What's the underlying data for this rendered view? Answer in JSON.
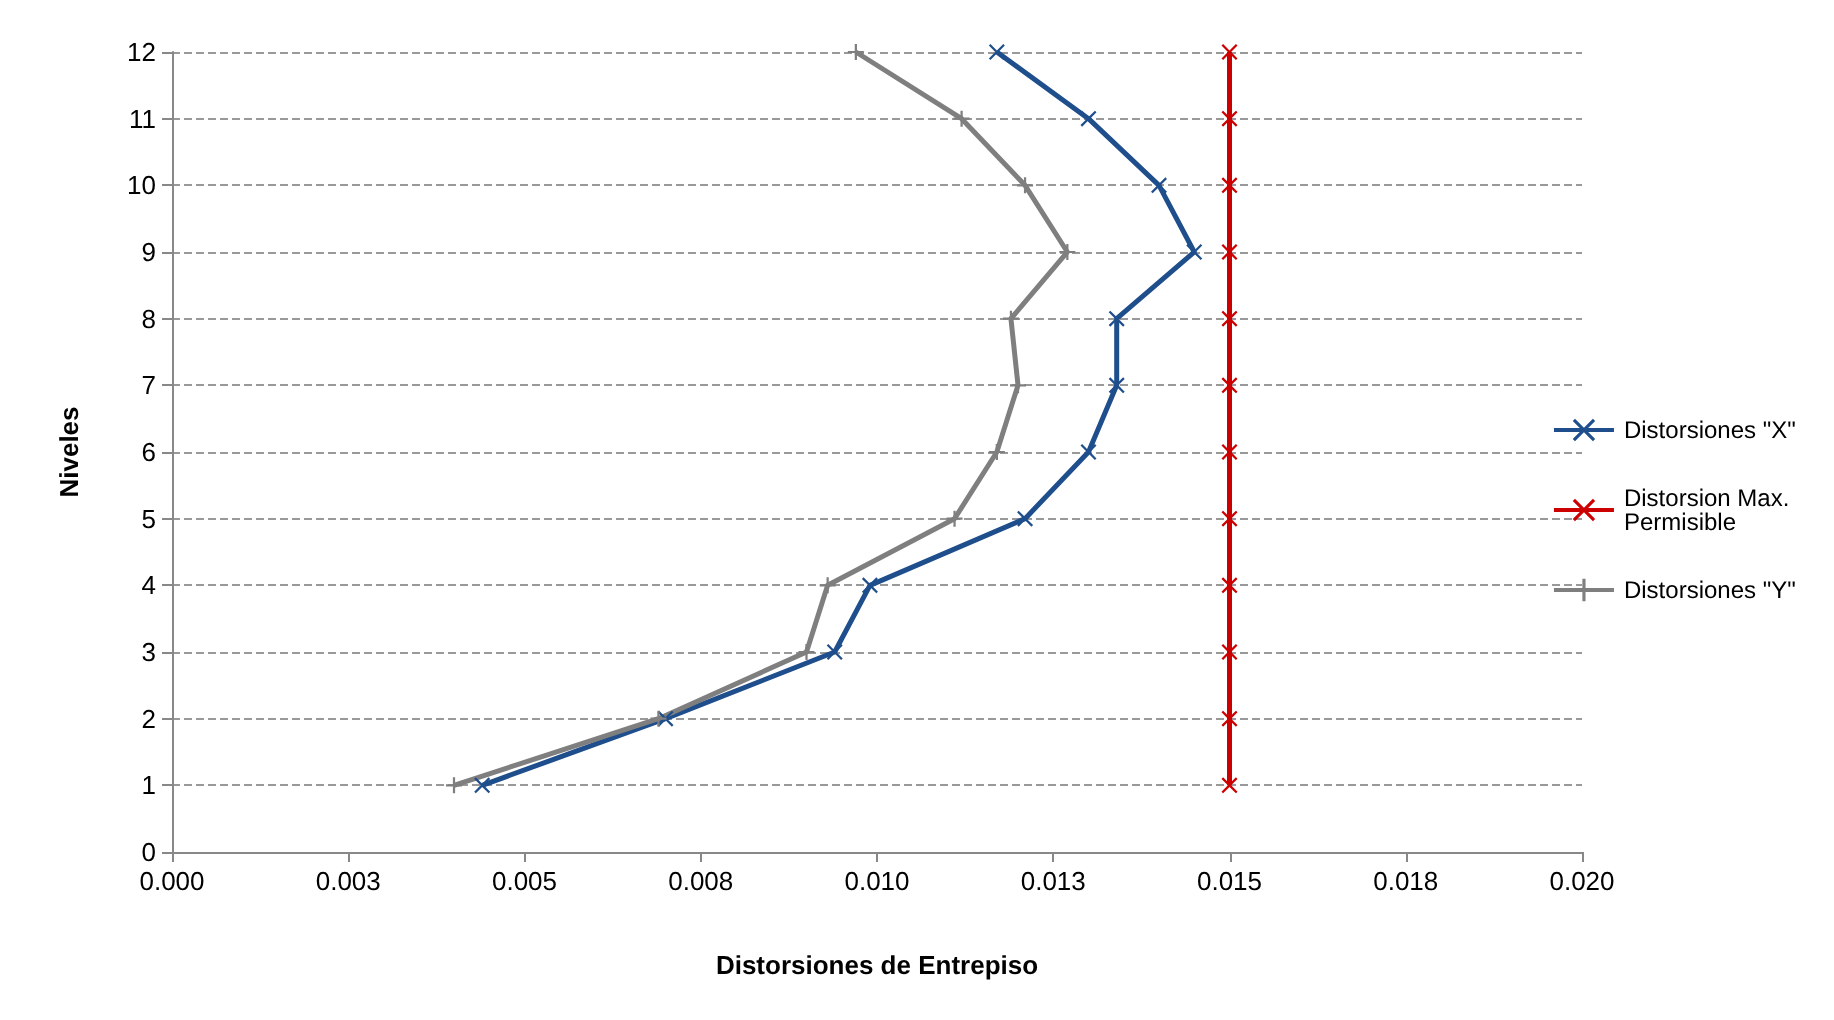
{
  "chart_data": {
    "type": "line",
    "xlabel": "Distorsiones de Entrepiso",
    "ylabel": "Niveles",
    "xlim": [
      0,
      0.02
    ],
    "xticks": [
      {
        "value": 0,
        "label": "0.000"
      },
      {
        "value": 0.0025,
        "label": "0.003"
      },
      {
        "value": 0.005,
        "label": "0.005"
      },
      {
        "value": 0.0075,
        "label": "0.008"
      },
      {
        "value": 0.01,
        "label": "0.010"
      },
      {
        "value": 0.0125,
        "label": "0.013"
      },
      {
        "value": 0.015,
        "label": "0.015"
      },
      {
        "value": 0.0175,
        "label": "0.018"
      },
      {
        "value": 0.02,
        "label": "0.020"
      }
    ],
    "ylim": [
      0,
      12
    ],
    "yticks": [
      0,
      1,
      2,
      3,
      4,
      5,
      6,
      7,
      8,
      9,
      10,
      11,
      12
    ],
    "grid": "y",
    "legend": "right",
    "series": [
      {
        "name": "Distorsiones \"X\"",
        "color": "#1f4e8c",
        "marker": "cross",
        "x": [
          0.0044,
          0.007,
          0.0094,
          0.0099,
          0.0121,
          0.013,
          0.0134,
          0.0134,
          0.0145,
          0.014,
          0.013,
          0.0117
        ],
        "values": [
          1,
          2,
          3,
          4,
          5,
          6,
          7,
          8,
          9,
          10,
          11,
          12
        ]
      },
      {
        "name": "Distorsion Max. Permisible",
        "color": "#cc0000",
        "marker": "cross",
        "x": [
          0.015,
          0.015,
          0.015,
          0.015,
          0.015,
          0.015,
          0.015,
          0.015,
          0.015,
          0.015,
          0.015,
          0.015
        ],
        "values": [
          1,
          2,
          3,
          4,
          5,
          6,
          7,
          8,
          9,
          10,
          11,
          12
        ]
      },
      {
        "name": "Distorsiones \"Y\"",
        "color": "#7f7f7f",
        "marker": "plus",
        "x": [
          0.004,
          0.0069,
          0.009,
          0.0093,
          0.0111,
          0.0117,
          0.012,
          0.0119,
          0.0127,
          0.0121,
          0.0112,
          0.0097
        ],
        "values": [
          1,
          2,
          3,
          4,
          5,
          6,
          7,
          8,
          9,
          10,
          11,
          12
        ]
      }
    ]
  }
}
